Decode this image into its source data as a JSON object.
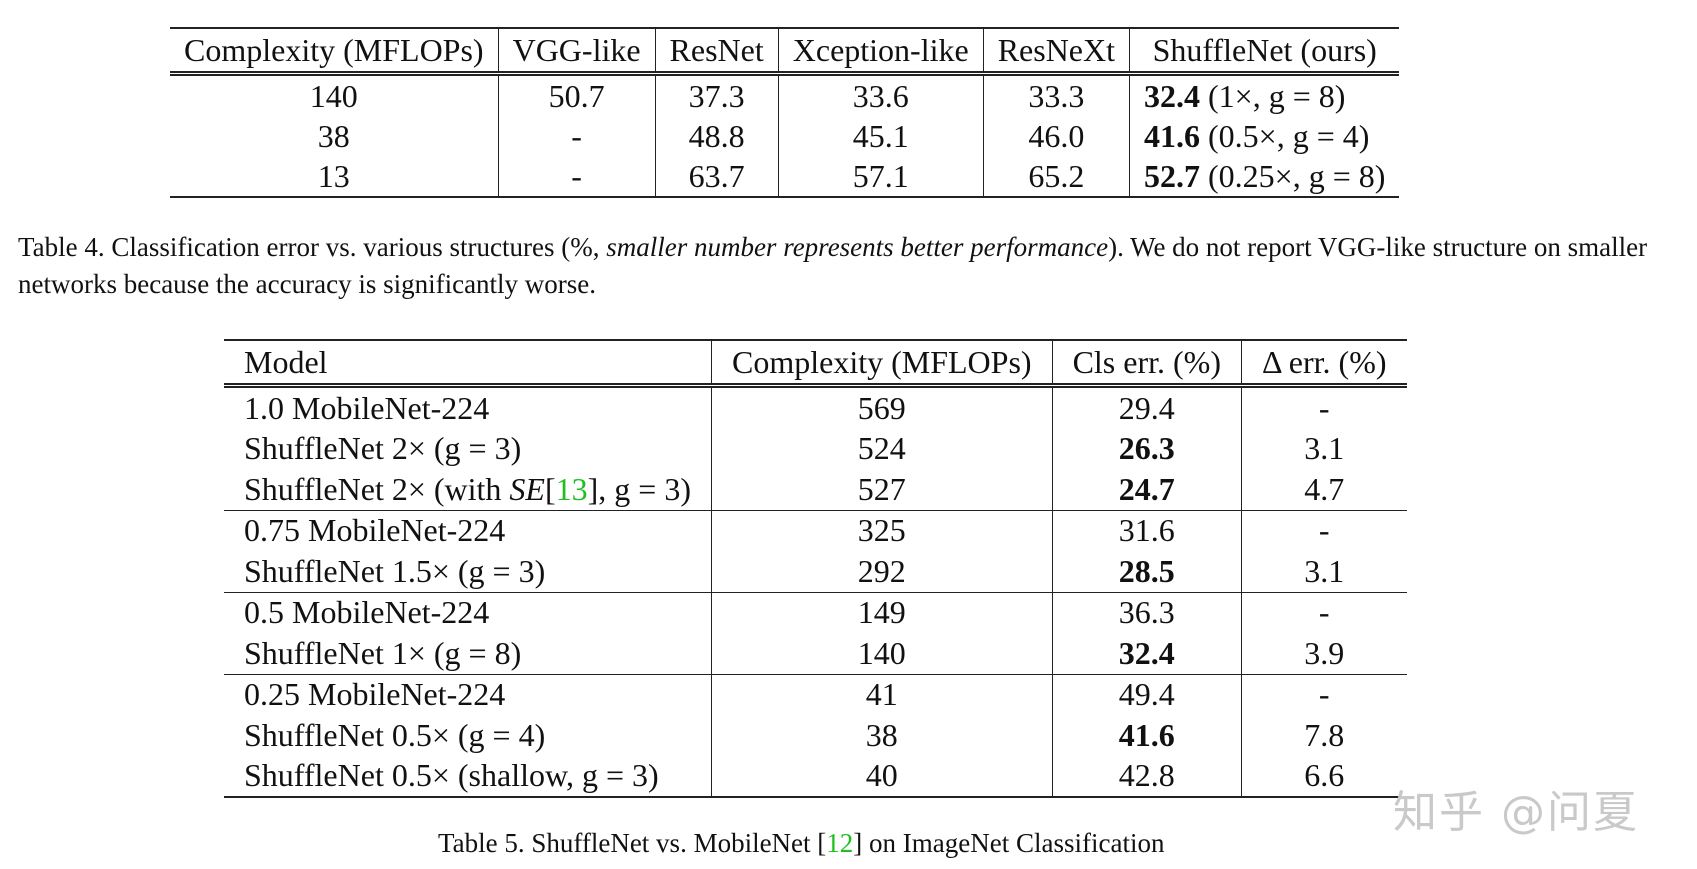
{
  "table4": {
    "headers": [
      "Complexity (MFLOPs)",
      "VGG-like",
      "ResNet",
      "Xception-like",
      "ResNeXt",
      "ShuffleNet (ours)"
    ],
    "rows": [
      {
        "complexity": "140",
        "vgg": "50.7",
        "resnet": "37.3",
        "xception": "33.6",
        "resnext": "33.3",
        "shuffle_val": "32.4",
        "shuffle_note": "(1×, g = 8)"
      },
      {
        "complexity": "38",
        "vgg": "-",
        "resnet": "48.8",
        "xception": "45.1",
        "resnext": "46.0",
        "shuffle_val": "41.6",
        "shuffle_note": "(0.5×, g = 4)"
      },
      {
        "complexity": "13",
        "vgg": "-",
        "resnet": "63.7",
        "xception": "57.1",
        "resnext": "65.2",
        "shuffle_val": "52.7",
        "shuffle_note": "(0.25×, g = 8)"
      }
    ],
    "caption": {
      "prefix": "Table 4. Classification error vs. various structures (%, ",
      "italic": "smaller number represents better performance",
      "suffix": "). We do not report VGG-like structure on smaller networks because the accuracy is significantly worse."
    }
  },
  "table5": {
    "headers": [
      "Model",
      "Complexity (MFLOPs)",
      "Cls err. (%)",
      "Δ err. (%)"
    ],
    "rows": [
      {
        "model": "1.0 MobileNet-224",
        "complexity": "569",
        "cls": "29.4",
        "delta": "-",
        "bold": false,
        "group_start": false
      },
      {
        "model": "ShuffleNet 2× (g = 3)",
        "complexity": "524",
        "cls": "26.3",
        "delta": "3.1",
        "bold": true,
        "group_start": false
      },
      {
        "model_pre": "ShuffleNet 2× (with ",
        "model_it": "SE",
        "model_br_open": "[",
        "model_ref": "13",
        "model_br_close": "]",
        "model_post": ", g = 3)",
        "complexity": "527",
        "cls": "24.7",
        "delta": "4.7",
        "bold": true,
        "group_start": false
      },
      {
        "model": "0.75 MobileNet-224",
        "complexity": "325",
        "cls": "31.6",
        "delta": "-",
        "bold": false,
        "group_start": true
      },
      {
        "model": "ShuffleNet 1.5× (g = 3)",
        "complexity": "292",
        "cls": "28.5",
        "delta": "3.1",
        "bold": true,
        "group_start": false
      },
      {
        "model": "0.5 MobileNet-224",
        "complexity": "149",
        "cls": "36.3",
        "delta": "-",
        "bold": false,
        "group_start": true
      },
      {
        "model": "ShuffleNet 1× (g = 8)",
        "complexity": "140",
        "cls": "32.4",
        "delta": "3.9",
        "bold": true,
        "group_start": false
      },
      {
        "model": "0.25 MobileNet-224",
        "complexity": "41",
        "cls": "49.4",
        "delta": "-",
        "bold": false,
        "group_start": true
      },
      {
        "model": "ShuffleNet 0.5× (g = 4)",
        "complexity": "38",
        "cls": "41.6",
        "delta": "7.8",
        "bold": true,
        "group_start": false
      },
      {
        "model": "ShuffleNet 0.5× (shallow, g = 3)",
        "complexity": "40",
        "cls": "42.8",
        "delta": "6.6",
        "bold": false,
        "group_start": false
      }
    ],
    "caption": {
      "prefix": "Table 5.  ShuffleNet vs. MobileNet [",
      "ref": "12",
      "suffix": "] on ImageNet Classification"
    }
  },
  "watermark": "知乎 @问夏",
  "colors": {
    "link": "#1fbf1f",
    "text": "#111111",
    "watermark": "#c9c9c9"
  }
}
